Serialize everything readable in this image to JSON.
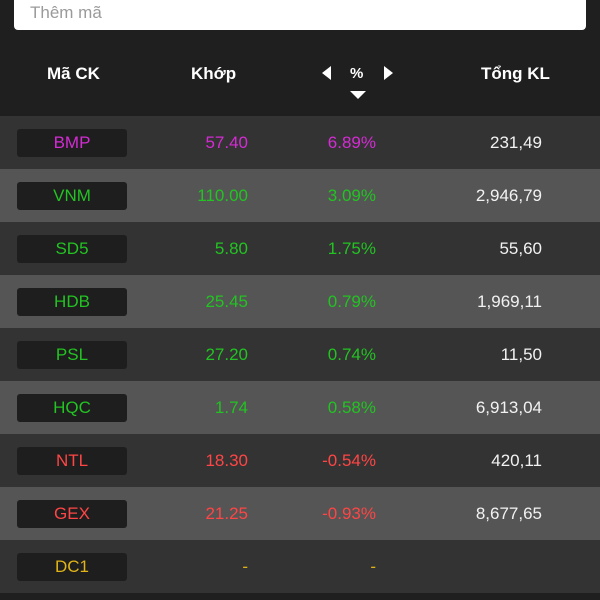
{
  "search": {
    "placeholder": "Thêm mã"
  },
  "header": {
    "symbol_label": "Mã CK",
    "match_label": "Khớp",
    "percent_label": "%",
    "total_label": "Tổng KL"
  },
  "colors": {
    "ceiling": "#d52bd5",
    "up": "#22c322",
    "down": "#ff4545",
    "reference": "#e0b418",
    "neutral": "#f2f2f2"
  },
  "rows": [
    {
      "symbol": "BMP",
      "match": "57.40",
      "pct": "6.89%",
      "total": "231,49",
      "status": "ceiling"
    },
    {
      "symbol": "VNM",
      "match": "110.00",
      "pct": "3.09%",
      "total": "2,946,79",
      "status": "up"
    },
    {
      "symbol": "SD5",
      "match": "5.80",
      "pct": "1.75%",
      "total": "55,60",
      "status": "up"
    },
    {
      "symbol": "HDB",
      "match": "25.45",
      "pct": "0.79%",
      "total": "1,969,11",
      "status": "up"
    },
    {
      "symbol": "PSL",
      "match": "27.20",
      "pct": "0.74%",
      "total": "11,50",
      "status": "up"
    },
    {
      "symbol": "HQC",
      "match": "1.74",
      "pct": "0.58%",
      "total": "6,913,04",
      "status": "up"
    },
    {
      "symbol": "NTL",
      "match": "18.30",
      "pct": "-0.54%",
      "total": "420,11",
      "status": "down"
    },
    {
      "symbol": "GEX",
      "match": "21.25",
      "pct": "-0.93%",
      "total": "8,677,65",
      "status": "down"
    },
    {
      "symbol": "DC1",
      "match": "-",
      "pct": "-",
      "total": "",
      "status": "reference"
    }
  ]
}
